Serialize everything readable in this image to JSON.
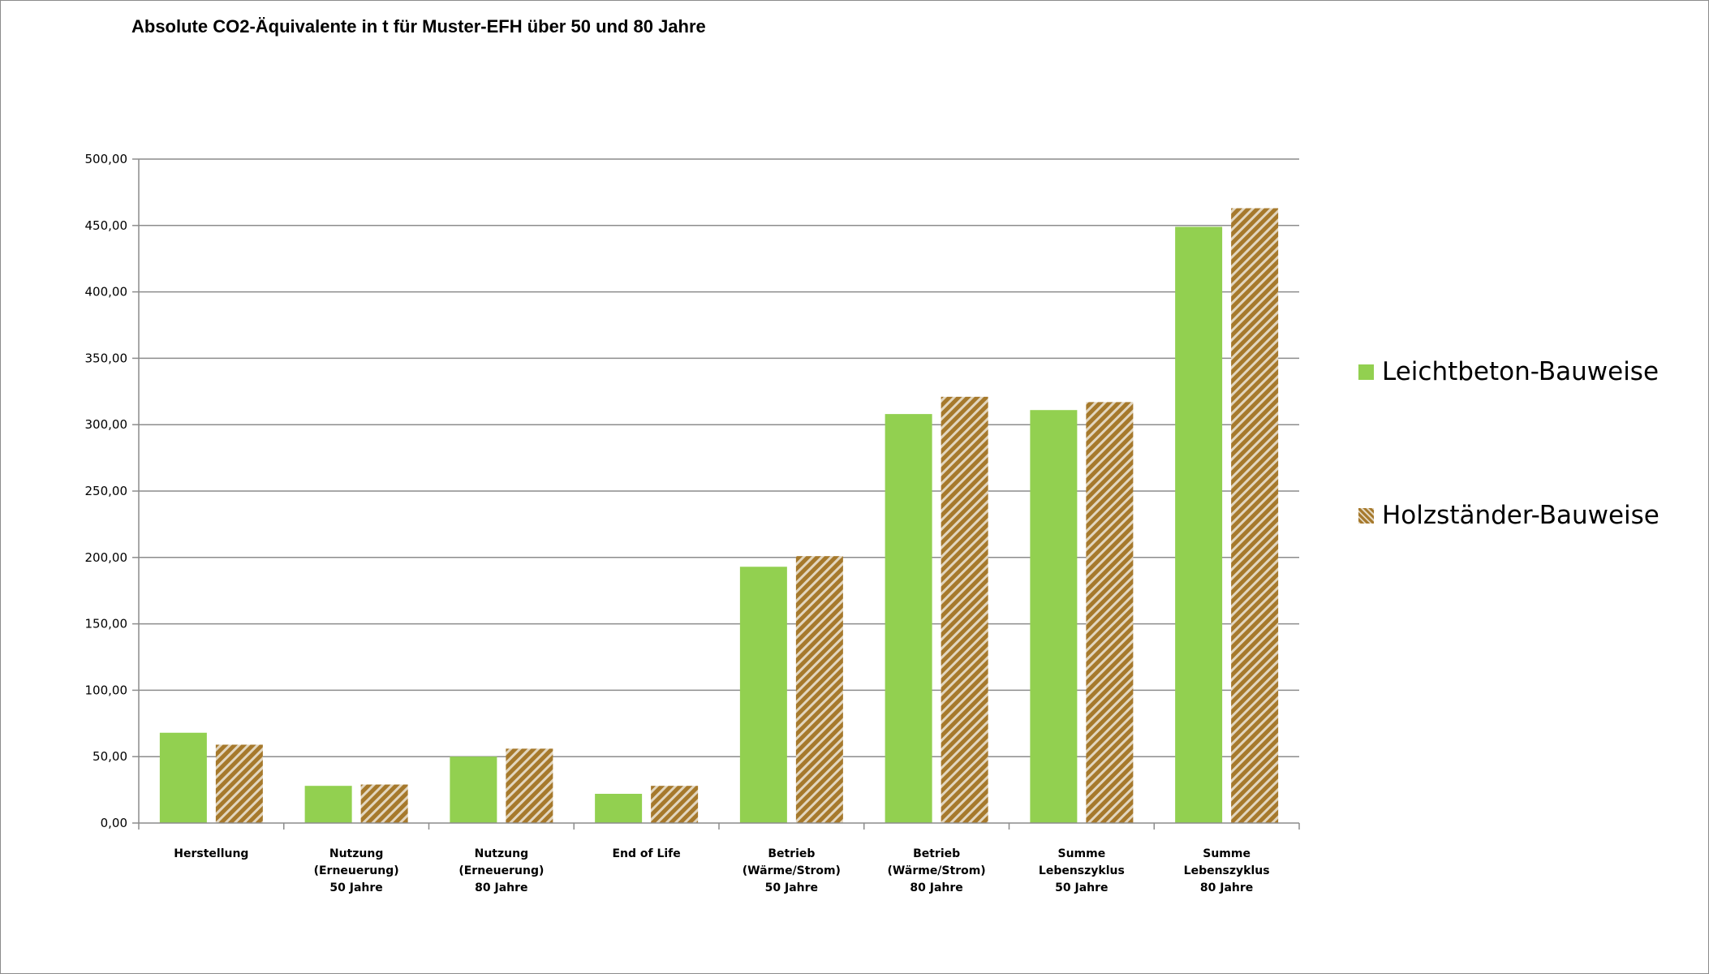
{
  "chart_data": {
    "type": "bar",
    "title": "Absolute CO2-Äquivalente in t für Muster-EFH über 50 und 80 Jahre",
    "xlabel": "",
    "ylabel": "",
    "ylim": [
      0,
      500
    ],
    "yticks": [
      "0,00",
      "50,00",
      "100,00",
      "150,00",
      "200,00",
      "250,00",
      "300,00",
      "350,00",
      "400,00",
      "450,00",
      "500,00"
    ],
    "grid": true,
    "legend_position": "right",
    "categories": [
      [
        "Herstellung"
      ],
      [
        "Nutzung",
        "(Erneuerung)",
        "50 Jahre"
      ],
      [
        "Nutzung",
        "(Erneuerung)",
        "80 Jahre"
      ],
      [
        "End of Life"
      ],
      [
        "Betrieb",
        "(Wärme/Strom)",
        "50 Jahre"
      ],
      [
        "Betrieb",
        "(Wärme/Strom)",
        "80 Jahre"
      ],
      [
        "Summe",
        "Lebenszyklus",
        "50 Jahre"
      ],
      [
        "Summe",
        "Lebenszyklus",
        "80 Jahre"
      ]
    ],
    "series": [
      {
        "name": "Leichtbeton-Bauweise",
        "color": "#92d050",
        "pattern": "solid",
        "values": [
          68,
          28,
          50,
          22,
          193,
          308,
          311,
          449
        ]
      },
      {
        "name": "Holzständer-Bauweise",
        "color": "#a6792c",
        "pattern": "diagonal-hatch",
        "values": [
          59,
          29,
          56,
          28,
          201,
          321,
          317,
          463
        ]
      }
    ]
  }
}
